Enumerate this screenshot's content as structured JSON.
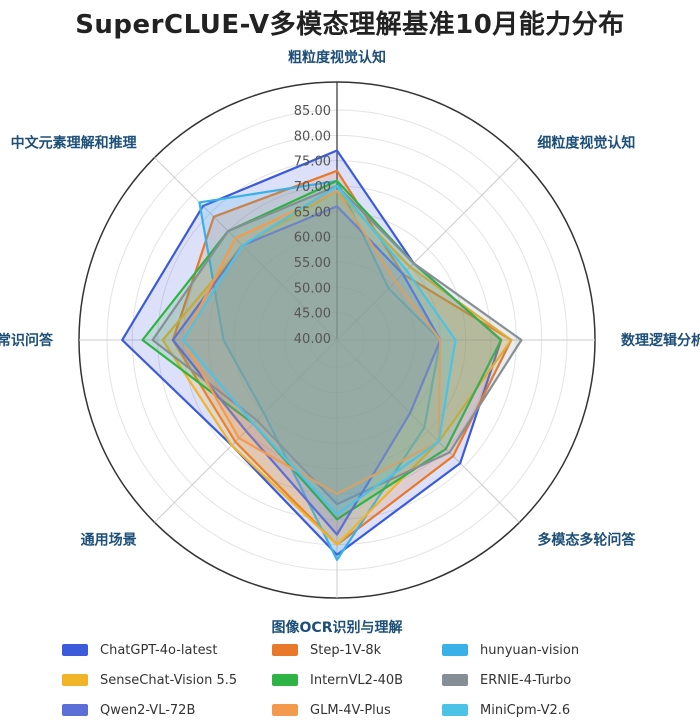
{
  "chart_data": {
    "type": "radar",
    "title": "SuperCLUE-V多模态理解基准10月能力分布",
    "axes": [
      "粗粒度视觉认知",
      "细粒度视觉认知",
      "数理逻辑分析",
      "多模态多轮问答",
      "图像OCR识别与理解",
      "通用场景",
      "常识问答",
      "中文元素理解和推理"
    ],
    "rlim": [
      40,
      85
    ],
    "ticks": [
      40,
      45,
      50,
      55,
      60,
      65,
      70,
      75,
      80,
      85
    ],
    "tick_labels": [
      "40.00",
      "45.00",
      "50.00",
      "55.00",
      "60.00",
      "65.00",
      "70.00",
      "75.00",
      "80.00",
      "85.00"
    ],
    "grid": true,
    "legend_position": "bottom",
    "series": [
      {
        "name": "ChatGPT-4o-latest",
        "color": "#3b5bdb",
        "values": [
          77,
          61,
          72,
          74,
          82,
          69,
          82,
          77
        ]
      },
      {
        "name": "Step-1V-8k",
        "color": "#e8782a",
        "values": [
          73,
          58,
          74,
          72,
          80,
          68,
          72,
          74
        ]
      },
      {
        "name": "hunyuan-vision",
        "color": "#3ab0e8",
        "values": [
          71,
          54,
          60,
          64,
          83,
          60,
          62,
          78
        ]
      },
      {
        "name": "SenseChat-Vision 5.5",
        "color": "#f0b429",
        "values": [
          69,
          60,
          74,
          68,
          80,
          69,
          74,
          66
        ]
      },
      {
        "name": "InternVL2-40B",
        "color": "#2fb344",
        "values": [
          71,
          61,
          72,
          70,
          75,
          63,
          78,
          70
        ]
      },
      {
        "name": "ERNIE-4-Turbo",
        "color": "#868e96",
        "values": [
          70,
          61,
          76,
          71,
          72,
          62,
          76,
          70
        ]
      },
      {
        "name": "Qwen2-VL-72B",
        "color": "#5c6fd6",
        "values": [
          66,
          58,
          60,
          60,
          78,
          65,
          72,
          66
        ]
      },
      {
        "name": "GLM-4V-Plus",
        "color": "#f29b4e",
        "values": [
          69,
          56,
          60,
          68,
          70,
          67,
          70,
          68
        ]
      },
      {
        "name": "MiniCpm-V2.6",
        "color": "#4cc3e6",
        "values": [
          70,
          59,
          63,
          68,
          74,
          63,
          70,
          66
        ]
      }
    ]
  }
}
